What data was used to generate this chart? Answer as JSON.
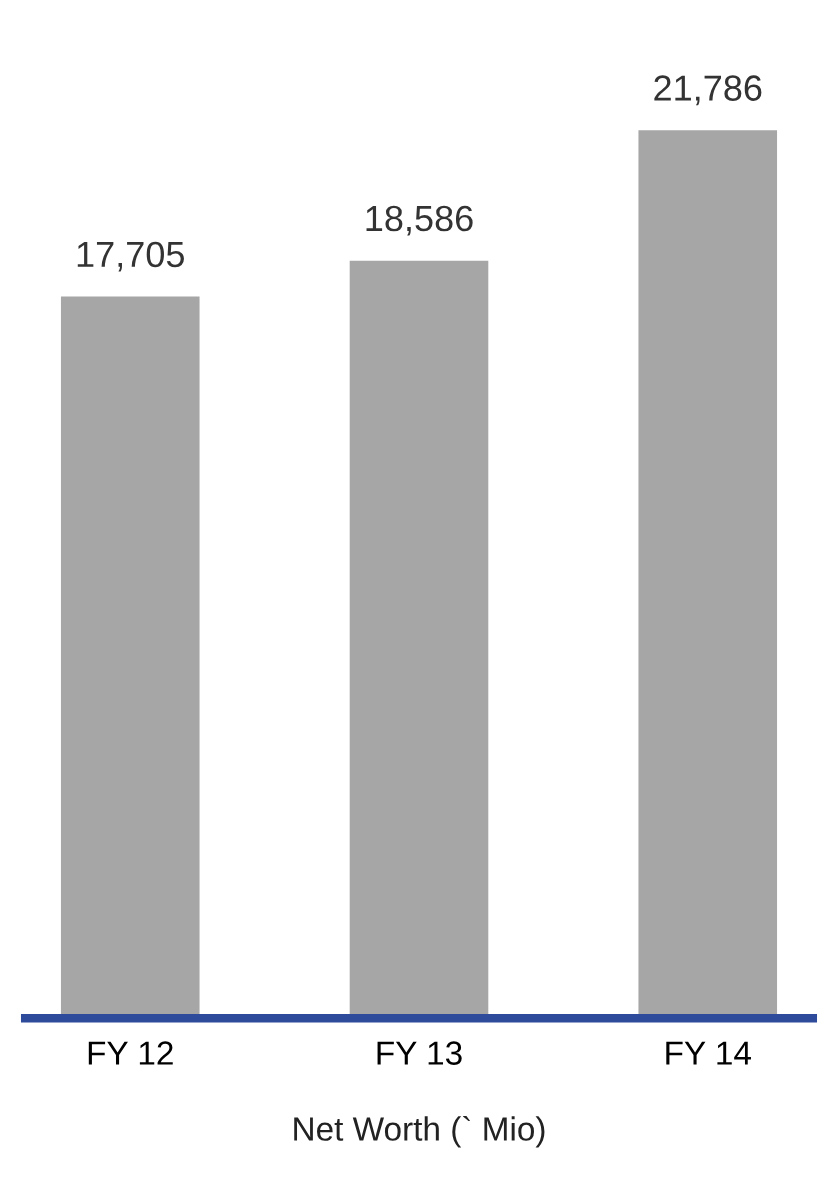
{
  "chart_data": {
    "type": "bar",
    "categories": [
      "FY 12",
      "FY 13",
      "FY 14"
    ],
    "values": [
      17705,
      18586,
      21786
    ],
    "value_labels": [
      "17,705",
      "18,586",
      "21,786"
    ],
    "color": "#a6a6a6",
    "xlabel": "Net Worth (` Mio)",
    "tick_labels": "x",
    "grid": false,
    "legend": false
  }
}
